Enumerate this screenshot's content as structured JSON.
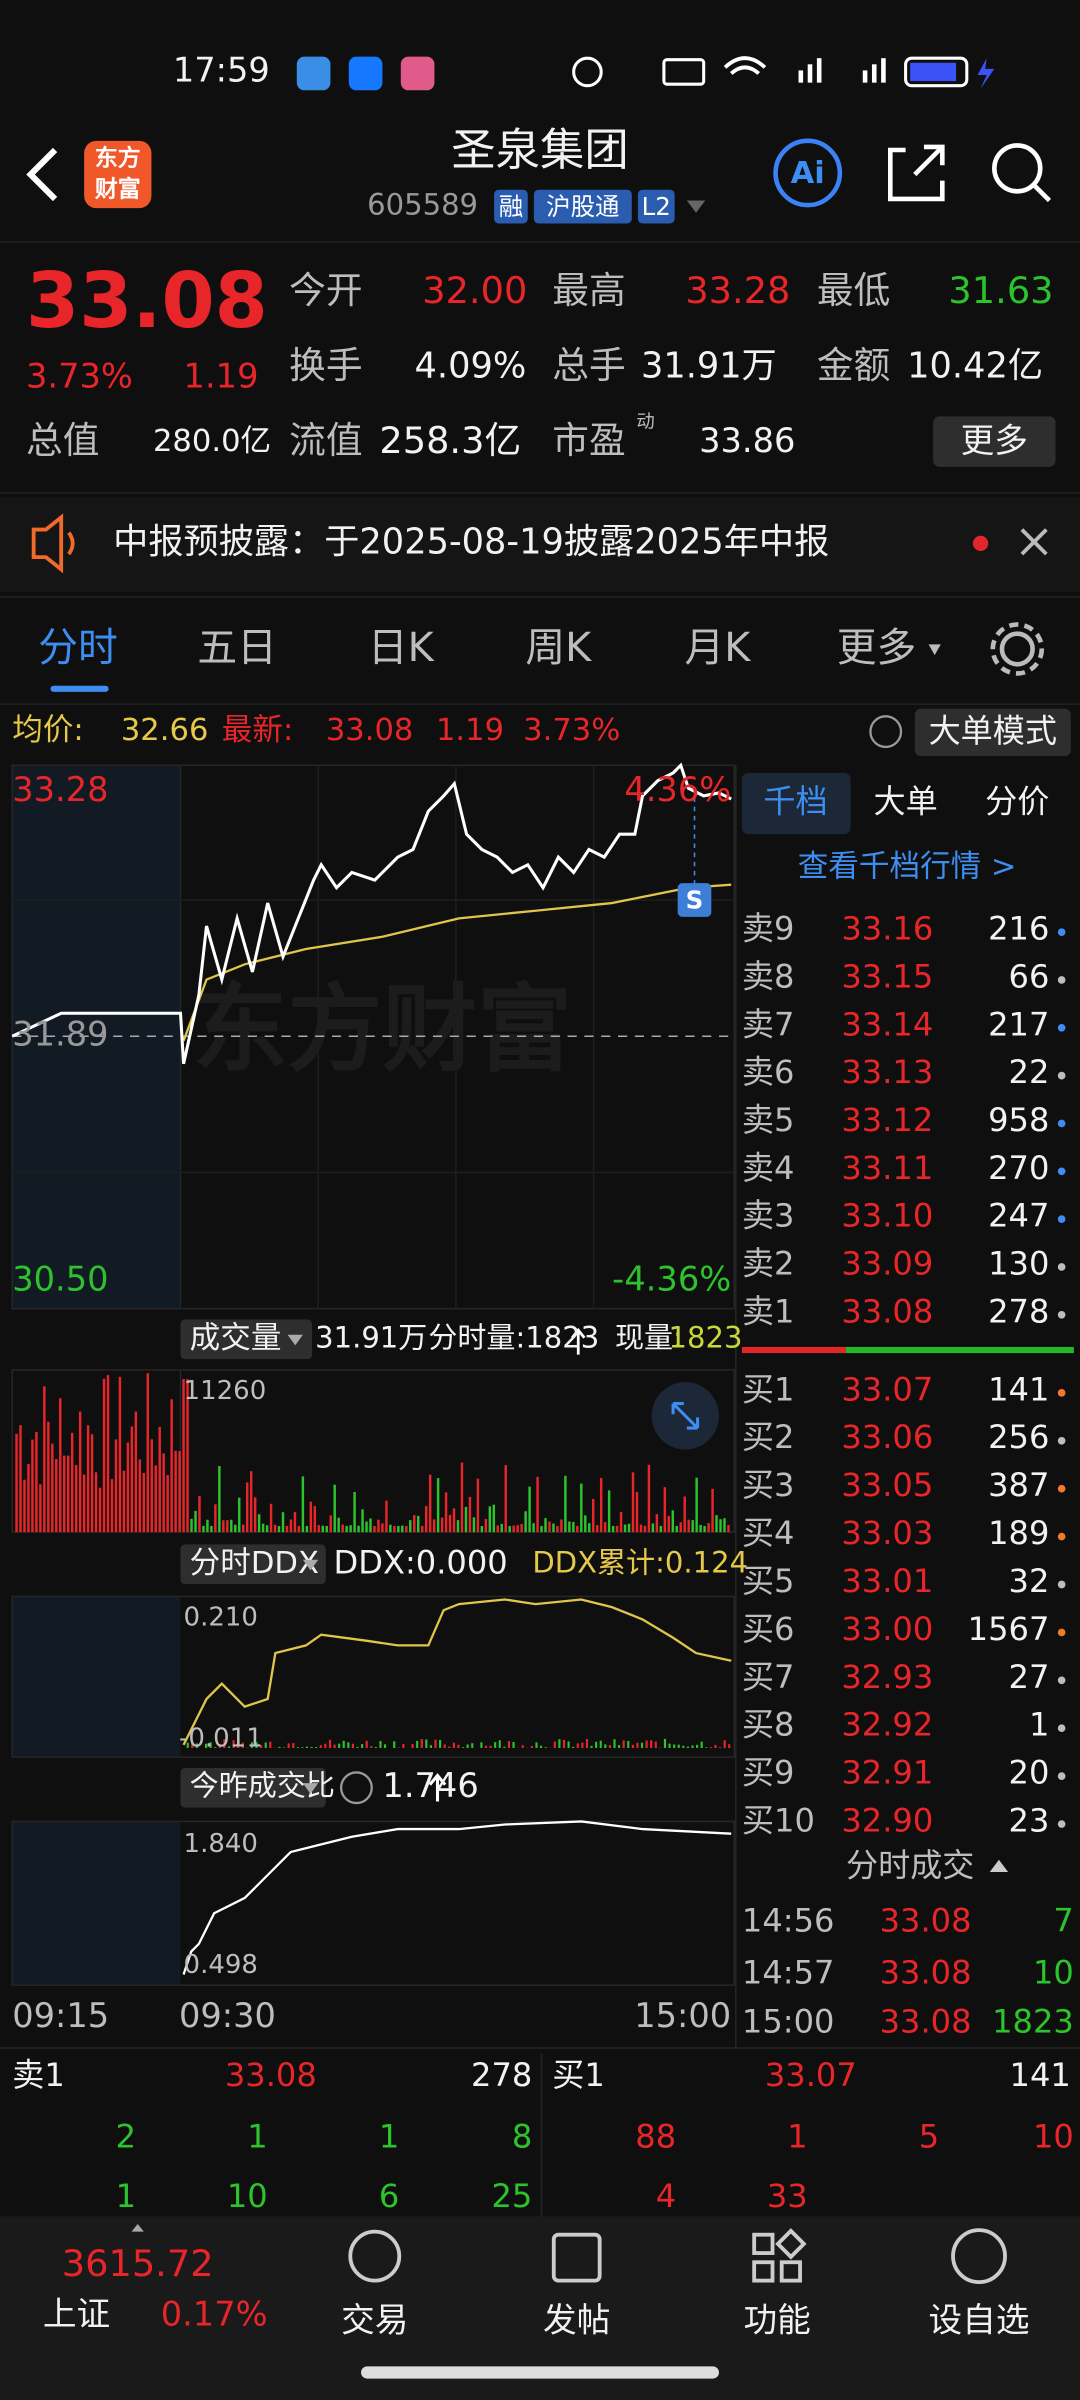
{
  "status_bar": {
    "time": "17:59"
  },
  "header": {
    "logo": [
      "东方",
      "财富"
    ],
    "title": "圣泉集团",
    "code": "605589",
    "tags": [
      "融",
      "沪股通",
      "L2"
    ],
    "ai": "Ai"
  },
  "quote": {
    "price": "33.08",
    "change_pct": "3.73%",
    "change": "1.19",
    "stats": [
      {
        "label": "今开",
        "value": "32.00"
      },
      {
        "label": "最高",
        "value": "33.28"
      },
      {
        "label": "最低",
        "value": "31.63"
      },
      {
        "label": "换手",
        "value": "4.09%"
      },
      {
        "label": "总手",
        "value": "31.91万"
      },
      {
        "label": "金额",
        "value": "10.42亿"
      },
      {
        "label": "总值",
        "value": "280.0亿"
      },
      {
        "label": "流值",
        "value": "258.3亿"
      },
      {
        "label": "市盈",
        "sup": "动",
        "value": "33.86"
      }
    ],
    "more": "更多"
  },
  "notice": {
    "text": "中报预披露：于2025-08-19披露2025年中报"
  },
  "tabs": [
    "分时",
    "五日",
    "日K",
    "周K",
    "月K",
    "更多"
  ],
  "info": {
    "avg_label": "均价:",
    "avg": "32.66",
    "last_label": "最新:",
    "last": "33.08",
    "change": "1.19",
    "change_pct": "3.73%",
    "mode": "大单模式"
  },
  "price_chart": {
    "high": "33.28",
    "high_pct": "4.36%",
    "prev_close": "31.89",
    "low": "30.50",
    "low_pct": "-4.36%",
    "marker": "S"
  },
  "volume": {
    "selector": "成交量",
    "total": "31.91万",
    "period": "分时量:1823",
    "current_label": "现量:",
    "current": "1823",
    "max": "11260"
  },
  "ddx": {
    "selector": "分时DDX",
    "value": "DDX:0.000",
    "cumulative": "DDX累计:0.124",
    "max": "0.210",
    "min": "-0.011"
  },
  "ratio": {
    "selector": "今昨成交比",
    "value": "1.746",
    "max": "1.840",
    "min": "0.498"
  },
  "time_axis": [
    "09:15",
    "09:30",
    "15:00"
  ],
  "order_book": {
    "tabs": [
      "千档",
      "大单",
      "分价"
    ],
    "link": "查看千档行情 >",
    "asks": [
      {
        "label": "卖9",
        "price": "33.16",
        "volume": "216"
      },
      {
        "label": "卖8",
        "price": "33.15",
        "volume": "66"
      },
      {
        "label": "卖7",
        "price": "33.14",
        "volume": "217"
      },
      {
        "label": "卖6",
        "price": "33.13",
        "volume": "22"
      },
      {
        "label": "卖5",
        "price": "33.12",
        "volume": "958"
      },
      {
        "label": "卖4",
        "price": "33.11",
        "volume": "270"
      },
      {
        "label": "卖3",
        "price": "33.10",
        "volume": "247"
      },
      {
        "label": "卖2",
        "price": "33.09",
        "volume": "130"
      },
      {
        "label": "卖1",
        "price": "33.08",
        "volume": "278"
      }
    ],
    "bids": [
      {
        "label": "买1",
        "price": "33.07",
        "volume": "141"
      },
      {
        "label": "买2",
        "price": "33.06",
        "volume": "256"
      },
      {
        "label": "买3",
        "price": "33.05",
        "volume": "387"
      },
      {
        "label": "买4",
        "price": "33.03",
        "volume": "189"
      },
      {
        "label": "买5",
        "price": "33.01",
        "volume": "32"
      },
      {
        "label": "买6",
        "price": "33.00",
        "volume": "1567"
      },
      {
        "label": "买7",
        "price": "32.93",
        "volume": "27"
      },
      {
        "label": "买8",
        "price": "32.92",
        "volume": "1"
      },
      {
        "label": "买9",
        "price": "32.91",
        "volume": "20"
      },
      {
        "label": "买10",
        "price": "32.90",
        "volume": "23"
      }
    ]
  },
  "trades": {
    "title": "分时成交",
    "rows": [
      [
        "14:56",
        "33.08",
        "7"
      ],
      [
        "14:57",
        "33.08",
        "10"
      ],
      [
        "15:00",
        "33.08",
        "1823"
      ]
    ]
  },
  "depth": {
    "ask": {
      "label": "卖1",
      "price": "33.08",
      "volume": "278",
      "queue": [
        [
          "2",
          "1",
          "1",
          "8"
        ],
        [
          "1",
          "10",
          "6",
          "25"
        ]
      ]
    },
    "bid": {
      "label": "买1",
      "price": "33.07",
      "volume": "141",
      "queue": [
        [
          "88",
          "1",
          "5",
          "10"
        ],
        [
          "4",
          "33"
        ]
      ]
    }
  },
  "nav": {
    "index_value": "3615.72",
    "index_name": "上证",
    "index_change": "0.17%",
    "items": [
      "交易",
      "发帖",
      "功能",
      "设自选"
    ]
  }
}
